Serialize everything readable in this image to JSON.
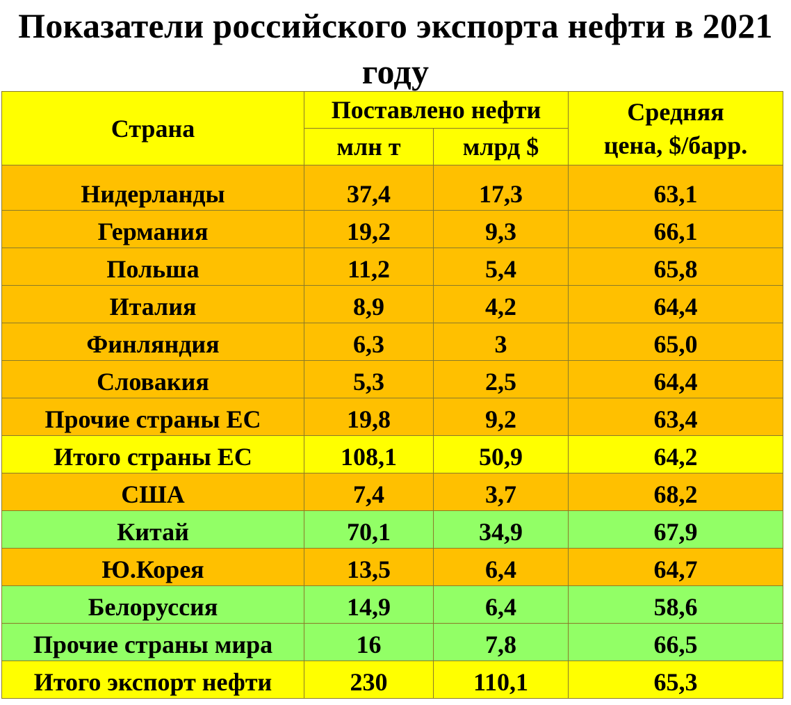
{
  "title": "Показатели российского экспорта нефти в 2021 году",
  "header": {
    "country": "Страна",
    "supplied": "Поставлено нефти",
    "mln_t": "млн т",
    "bln_usd": "млрд $",
    "avg_price": "Средняя цена, $/барр."
  },
  "colors": {
    "yellow": "#ffff00",
    "orange": "#ffc000",
    "green": "#92ff66"
  },
  "rows": [
    {
      "country": "Нидерланды",
      "mln_t": "37,4",
      "bln_usd": "17,3",
      "price": "63,1",
      "color": "orange"
    },
    {
      "country": "Германия",
      "mln_t": "19,2",
      "bln_usd": "9,3",
      "price": "66,1",
      "color": "orange"
    },
    {
      "country": "Польша",
      "mln_t": "11,2",
      "bln_usd": "5,4",
      "price": "65,8",
      "color": "orange"
    },
    {
      "country": "Италия",
      "mln_t": "8,9",
      "bln_usd": "4,2",
      "price": "64,4",
      "color": "orange"
    },
    {
      "country": "Финляндия",
      "mln_t": "6,3",
      "bln_usd": "3",
      "price": "65,0",
      "color": "orange"
    },
    {
      "country": "Словакия",
      "mln_t": "5,3",
      "bln_usd": "2,5",
      "price": "64,4",
      "color": "orange"
    },
    {
      "country": "Прочие страны ЕС",
      "mln_t": "19,8",
      "bln_usd": "9,2",
      "price": "63,4",
      "color": "orange"
    },
    {
      "country": "Итого страны ЕС",
      "mln_t": "108,1",
      "bln_usd": "50,9",
      "price": "64,2",
      "color": "yellow"
    },
    {
      "country": "США",
      "mln_t": "7,4",
      "bln_usd": "3,7",
      "price": "68,2",
      "color": "orange"
    },
    {
      "country": "Китай",
      "mln_t": "70,1",
      "bln_usd": "34,9",
      "price": "67,9",
      "color": "green"
    },
    {
      "country": "Ю.Корея",
      "mln_t": "13,5",
      "bln_usd": "6,4",
      "price": "64,7",
      "color": "orange"
    },
    {
      "country": "Белоруссия",
      "mln_t": "14,9",
      "bln_usd": "6,4",
      "price": "58,6",
      "color": "green"
    },
    {
      "country": "Прочие страны мира",
      "mln_t": "16",
      "bln_usd": "7,8",
      "price": "66,5",
      "color": "green"
    },
    {
      "country": "Итого экспорт нефти",
      "mln_t": "230",
      "bln_usd": "110,1",
      "price": "65,3",
      "color": "yellow"
    }
  ]
}
